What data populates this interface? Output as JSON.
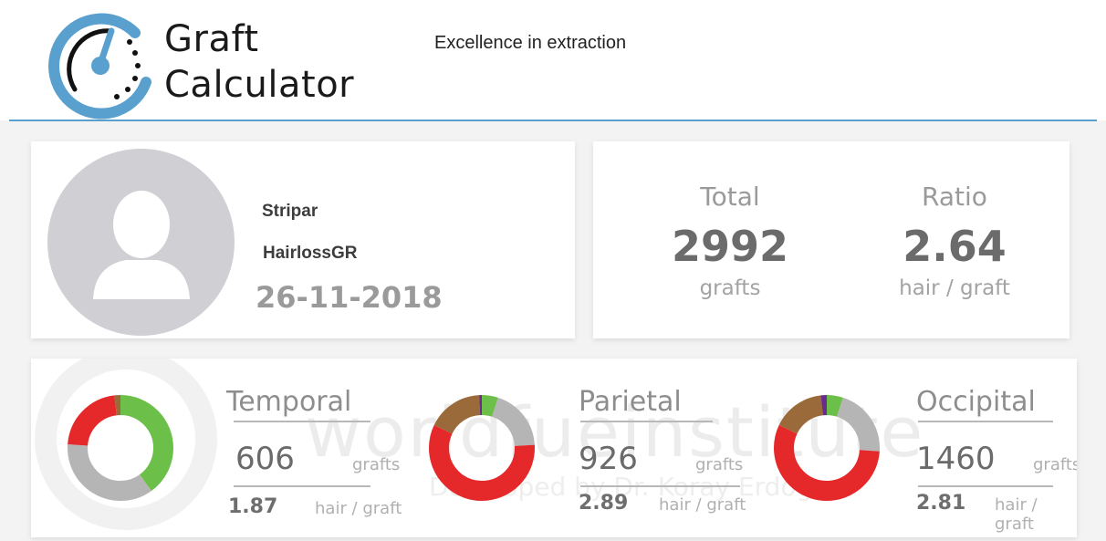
{
  "header": {
    "brand_line1": "Graft",
    "brand_line2": "Calculator",
    "tagline": "Excellence in extraction",
    "logo_icon": "gauge-icon"
  },
  "profile": {
    "avatar_icon": "user-avatar-icon",
    "name_line1": "Stripar",
    "name_line2": "HairlossGR",
    "date": "26-11-2018"
  },
  "totals": {
    "total_label": "Total",
    "total_value": "2992",
    "total_unit": "grafts",
    "ratio_label": "Ratio",
    "ratio_value": "2.64",
    "ratio_unit": "hair / graft"
  },
  "watermark": {
    "text": "worldfueinstitute",
    "subtext": "Developed by Dr. Koray Erdogan"
  },
  "colors": {
    "accent": "#5aa0cf",
    "green": "#6cc04a",
    "red": "#e5282a",
    "gray": "#b5b5b5",
    "brown": "#9a6a3a",
    "purple": "#6a2c8a"
  },
  "zones": [
    {
      "name": "Temporal",
      "grafts": "606",
      "grafts_unit": "grafts",
      "ratio": "1.87",
      "ratio_unit": "hair / graft",
      "segments": [
        {
          "color": "#6cc04a",
          "fraction": 0.4
        },
        {
          "color": "#b5b5b5",
          "fraction": 0.36
        },
        {
          "color": "#e5282a",
          "fraction": 0.22
        },
        {
          "color": "#9a6a3a",
          "fraction": 0.02
        }
      ]
    },
    {
      "name": "Parietal",
      "grafts": "926",
      "grafts_unit": "grafts",
      "ratio": "2.89",
      "ratio_unit": "hair / graft",
      "segments": [
        {
          "color": "#6cc04a",
          "fraction": 0.05
        },
        {
          "color": "#b5b5b5",
          "fraction": 0.19
        },
        {
          "color": "#e5282a",
          "fraction": 0.58
        },
        {
          "color": "#9a6a3a",
          "fraction": 0.17
        },
        {
          "color": "#6a2c8a",
          "fraction": 0.01
        }
      ]
    },
    {
      "name": "Occipital",
      "grafts": "1460",
      "grafts_unit": "grafts",
      "ratio": "2.81",
      "ratio_unit": "hair / graft",
      "segments": [
        {
          "color": "#6cc04a",
          "fraction": 0.05
        },
        {
          "color": "#b5b5b5",
          "fraction": 0.21
        },
        {
          "color": "#e5282a",
          "fraction": 0.56
        },
        {
          "color": "#9a6a3a",
          "fraction": 0.16
        },
        {
          "color": "#6a2c8a",
          "fraction": 0.02
        }
      ]
    }
  ]
}
